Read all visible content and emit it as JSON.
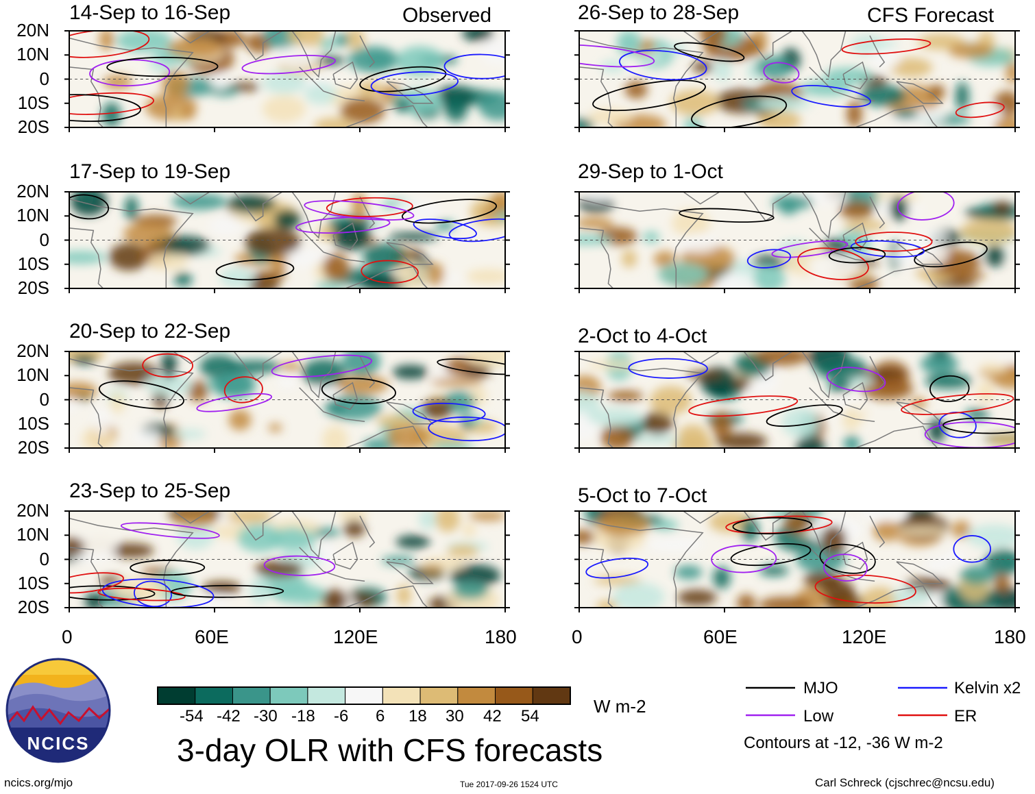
{
  "figure": {
    "title": "3-day OLR with CFS forecasts",
    "website": "ncics.org/mjo",
    "timestamp": "Tue 2017-09-26 1524 UTC",
    "author": "Carl Schreck (cjschrec@ncsu.edu)",
    "logo_text": "NCICS",
    "columns": {
      "left": "Observed",
      "right": "CFS Forecast"
    }
  },
  "chart_data": {
    "type": "heatmap",
    "variable": "OLR anomaly (3-day mean)",
    "x_axis": {
      "label": "",
      "range": [
        0,
        180
      ],
      "ticks": [
        0,
        60,
        120,
        180
      ],
      "tick_labels": [
        "0",
        "60E",
        "120E",
        "180"
      ]
    },
    "y_axis": {
      "label": "",
      "range": [
        -20,
        20
      ],
      "ticks": [
        20,
        10,
        0,
        -10,
        -20
      ],
      "tick_labels": [
        "20N",
        "10N",
        "0",
        "10S",
        "20S"
      ]
    },
    "panels": [
      {
        "title": "14-Sep to 16-Sep",
        "column": "Observed"
      },
      {
        "title": "17-Sep to 19-Sep",
        "column": "Observed"
      },
      {
        "title": "20-Sep to 22-Sep",
        "column": "Observed"
      },
      {
        "title": "23-Sep to 25-Sep",
        "column": "Observed"
      },
      {
        "title": "26-Sep to 28-Sep",
        "column": "CFS Forecast"
      },
      {
        "title": "29-Sep to 1-Oct",
        "column": "CFS Forecast"
      },
      {
        "title": "2-Oct to 4-Oct",
        "column": "CFS Forecast"
      },
      {
        "title": "5-Oct to 7-Oct",
        "column": "CFS Forecast"
      }
    ],
    "colorbar": {
      "units": "W m-2",
      "tick_labels": [
        "-54",
        "-42",
        "-30",
        "-18",
        "-6",
        "6",
        "18",
        "30",
        "42",
        "54"
      ],
      "colors": [
        "#003d31",
        "#0c6b5e",
        "#3a958a",
        "#7dc9bb",
        "#c4e8df",
        "#f7f7f7",
        "#f3e2b8",
        "#ddbb75",
        "#c28a3e",
        "#97591a",
        "#613812"
      ]
    },
    "legend": {
      "items": [
        {
          "label": "MJO",
          "color": "#000000"
        },
        {
          "label": "Kelvin x2",
          "color": "#1a1aff"
        },
        {
          "label": "Low",
          "color": "#a020f0"
        },
        {
          "label": "ER",
          "color": "#e01010"
        }
      ],
      "note": "Contours at -12, -36 W m-2"
    }
  }
}
